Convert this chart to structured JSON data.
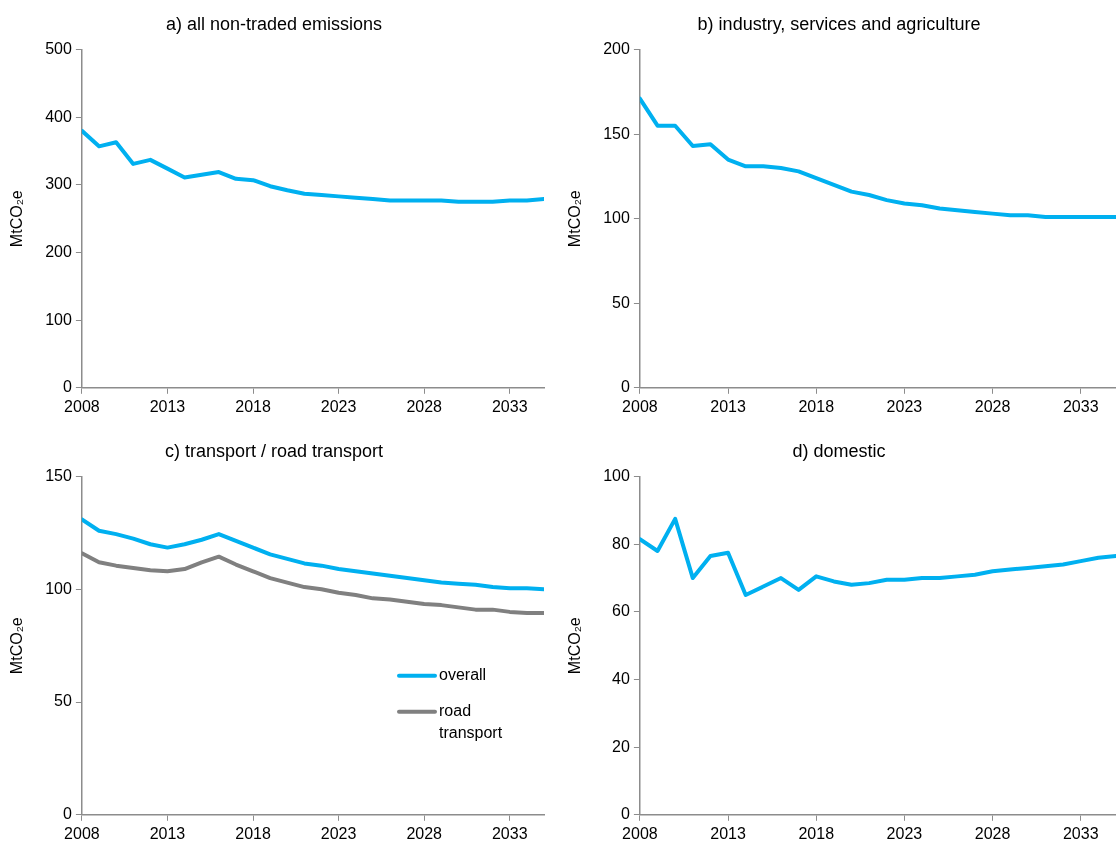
{
  "chart_data": [
    {
      "type": "line",
      "title": "a) all non-traded emissions",
      "ylabel": "MtCO₂e",
      "x": [
        2008,
        2009,
        2010,
        2011,
        2012,
        2013,
        2014,
        2015,
        2016,
        2017,
        2018,
        2019,
        2020,
        2021,
        2022,
        2023,
        2024,
        2025,
        2026,
        2027,
        2028,
        2029,
        2030,
        2031,
        2032,
        2033,
        2034,
        2035
      ],
      "xlim": [
        2008,
        2035
      ],
      "xticks": [
        2008,
        2013,
        2018,
        2023,
        2028,
        2033
      ],
      "ylim": [
        0,
        500
      ],
      "yticks": [
        0,
        100,
        200,
        300,
        400,
        500
      ],
      "legend": false,
      "series": [
        {
          "color": "#00b0f0",
          "values": [
            380,
            357,
            363,
            331,
            337,
            324,
            311,
            315,
            319,
            309,
            307,
            298,
            292,
            287,
            285,
            283,
            281,
            279,
            277,
            277,
            277,
            277,
            275,
            275,
            275,
            277,
            277,
            279
          ]
        }
      ]
    },
    {
      "type": "line",
      "title": "b) industry, services and agriculture",
      "ylabel": "MtCO₂e",
      "x": [
        2008,
        2009,
        2010,
        2011,
        2012,
        2013,
        2014,
        2015,
        2016,
        2017,
        2018,
        2019,
        2020,
        2021,
        2022,
        2023,
        2024,
        2025,
        2026,
        2027,
        2028,
        2029,
        2030,
        2031,
        2032,
        2033,
        2034,
        2035
      ],
      "xlim": [
        2008,
        2035
      ],
      "xticks": [
        2008,
        2013,
        2018,
        2023,
        2028,
        2033
      ],
      "ylim": [
        0,
        200
      ],
      "yticks": [
        0,
        50,
        100,
        150,
        200
      ],
      "legend": false,
      "series": [
        {
          "color": "#00b0f0",
          "values": [
            171,
            155,
            155,
            143,
            144,
            135,
            131,
            131,
            130,
            128,
            124,
            120,
            116,
            114,
            111,
            109,
            108,
            106,
            105,
            104,
            103,
            102,
            102,
            101,
            101,
            101,
            101,
            101
          ]
        }
      ]
    },
    {
      "type": "line",
      "title": "c) transport / road transport",
      "ylabel": "MtCO₂e",
      "x": [
        2008,
        2009,
        2010,
        2011,
        2012,
        2013,
        2014,
        2015,
        2016,
        2017,
        2018,
        2019,
        2020,
        2021,
        2022,
        2023,
        2024,
        2025,
        2026,
        2027,
        2028,
        2029,
        2030,
        2031,
        2032,
        2033,
        2034,
        2035
      ],
      "xlim": [
        2008,
        2035
      ],
      "xticks": [
        2008,
        2013,
        2018,
        2023,
        2028,
        2033
      ],
      "ylim": [
        0,
        150
      ],
      "yticks": [
        0,
        50,
        100,
        150
      ],
      "legend": "bottom right",
      "series": [
        {
          "name": "overall",
          "color": "#00b0f0",
          "values": [
            131,
            126,
            124.5,
            122.5,
            120,
            118.5,
            120,
            122,
            124.5,
            121.5,
            118.5,
            115.5,
            113.5,
            111.5,
            110.5,
            109,
            108,
            107,
            106,
            105,
            104,
            103,
            102.5,
            102,
            101,
            100.5,
            100.5,
            100
          ]
        },
        {
          "name": "road transport",
          "color": "#808080",
          "values": [
            116,
            112,
            110.5,
            109.5,
            108.5,
            108,
            109,
            112,
            114.5,
            111,
            108,
            105,
            103,
            101,
            100,
            98.5,
            97.5,
            96,
            95.5,
            94.5,
            93.5,
            93,
            92,
            91,
            91,
            90,
            89.5,
            89.5
          ]
        }
      ]
    },
    {
      "type": "line",
      "title": "d) domestic",
      "ylabel": "MtCO₂e",
      "x": [
        2008,
        2009,
        2010,
        2011,
        2012,
        2013,
        2014,
        2015,
        2016,
        2017,
        2018,
        2019,
        2020,
        2021,
        2022,
        2023,
        2024,
        2025,
        2026,
        2027,
        2028,
        2029,
        2030,
        2031,
        2032,
        2033,
        2034,
        2035
      ],
      "xlim": [
        2008,
        2035
      ],
      "xticks": [
        2008,
        2013,
        2018,
        2023,
        2028,
        2033
      ],
      "ylim": [
        0,
        100
      ],
      "yticks": [
        0,
        20,
        40,
        60,
        80,
        100
      ],
      "legend": false,
      "series": [
        {
          "color": "#00b0f0",
          "values": [
            81.5,
            78,
            87.5,
            70,
            76.5,
            77.5,
            65,
            67.5,
            70,
            66.5,
            70.5,
            69,
            68,
            68.5,
            69.5,
            69.5,
            70,
            70,
            70.5,
            71,
            72,
            72.5,
            73,
            73.5,
            74,
            75,
            76,
            76.5
          ]
        }
      ]
    }
  ]
}
